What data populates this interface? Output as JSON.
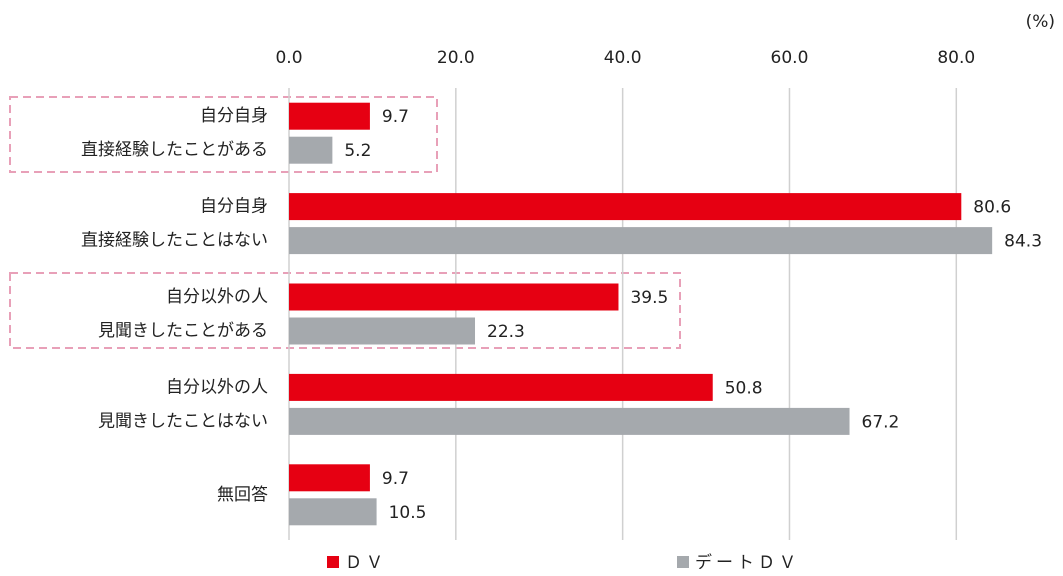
{
  "chart_data": {
    "type": "barh",
    "unit_label": "(%)",
    "categories": [
      [
        "自分自身",
        "直接経験したことがある"
      ],
      [
        "自分自身",
        "直接経験したことはない"
      ],
      [
        "自分以外の人",
        "見聞きしたことがある"
      ],
      [
        "自分以外の人",
        "見聞きしたことはない"
      ],
      [
        "無回答"
      ]
    ],
    "series": [
      {
        "name": "ＤＶ",
        "color": "#e60012",
        "values": [
          9.7,
          80.6,
          39.5,
          50.8,
          9.7
        ]
      },
      {
        "name": "デートＤＶ",
        "color": "#a5a9ad",
        "values": [
          5.2,
          84.3,
          22.3,
          67.2,
          10.5
        ]
      }
    ],
    "xlim": [
      0,
      85
    ],
    "xticks": [
      {
        "value": 0,
        "label": "0.0"
      },
      {
        "value": 20,
        "label": "20.0"
      },
      {
        "value": 40,
        "label": "40.0"
      },
      {
        "value": 60,
        "label": "60.0"
      },
      {
        "value": 80,
        "label": "80.0"
      }
    ],
    "grid": true
  }
}
